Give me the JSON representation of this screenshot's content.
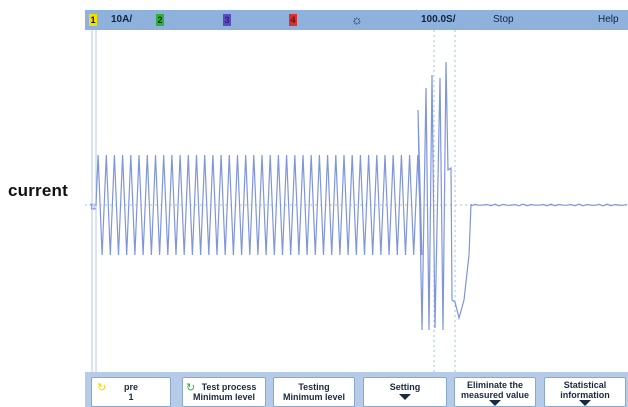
{
  "side_label": "current",
  "topbar": {
    "ch1": "1",
    "scale": "10A/",
    "ch2": "2",
    "ch3": "3",
    "ch4": "4",
    "brightness_icon": "sun-icon",
    "timebase": "100.0S/",
    "state": "Stop",
    "help": "Help"
  },
  "colors": {
    "topbar_bg": "#8fb2dd",
    "trace": "#7f95dc",
    "ch1": "#f5e000",
    "ch2": "#2fae3a",
    "ch3": "#5a4bbf",
    "ch4": "#d93030",
    "softkey_bg": "#b5cbe8"
  },
  "softkeys": [
    {
      "line1": "pre",
      "line2": "1",
      "icon": "refresh-icon",
      "arrow": false
    },
    {
      "line1": "Test process",
      "line2": "Minimum level",
      "icon": "refresh-icon",
      "arrow": false
    },
    {
      "line1": "Testing",
      "line2": "Minimum level",
      "icon": "",
      "arrow": false
    },
    {
      "line1": "Setting",
      "line2": "",
      "icon": "",
      "arrow": true
    },
    {
      "line1": "Eliminate the",
      "line2": "measured value",
      "icon": "",
      "arrow": true
    },
    {
      "line1": "Statistical",
      "line2": "information",
      "icon": "",
      "arrow": true
    }
  ]
}
